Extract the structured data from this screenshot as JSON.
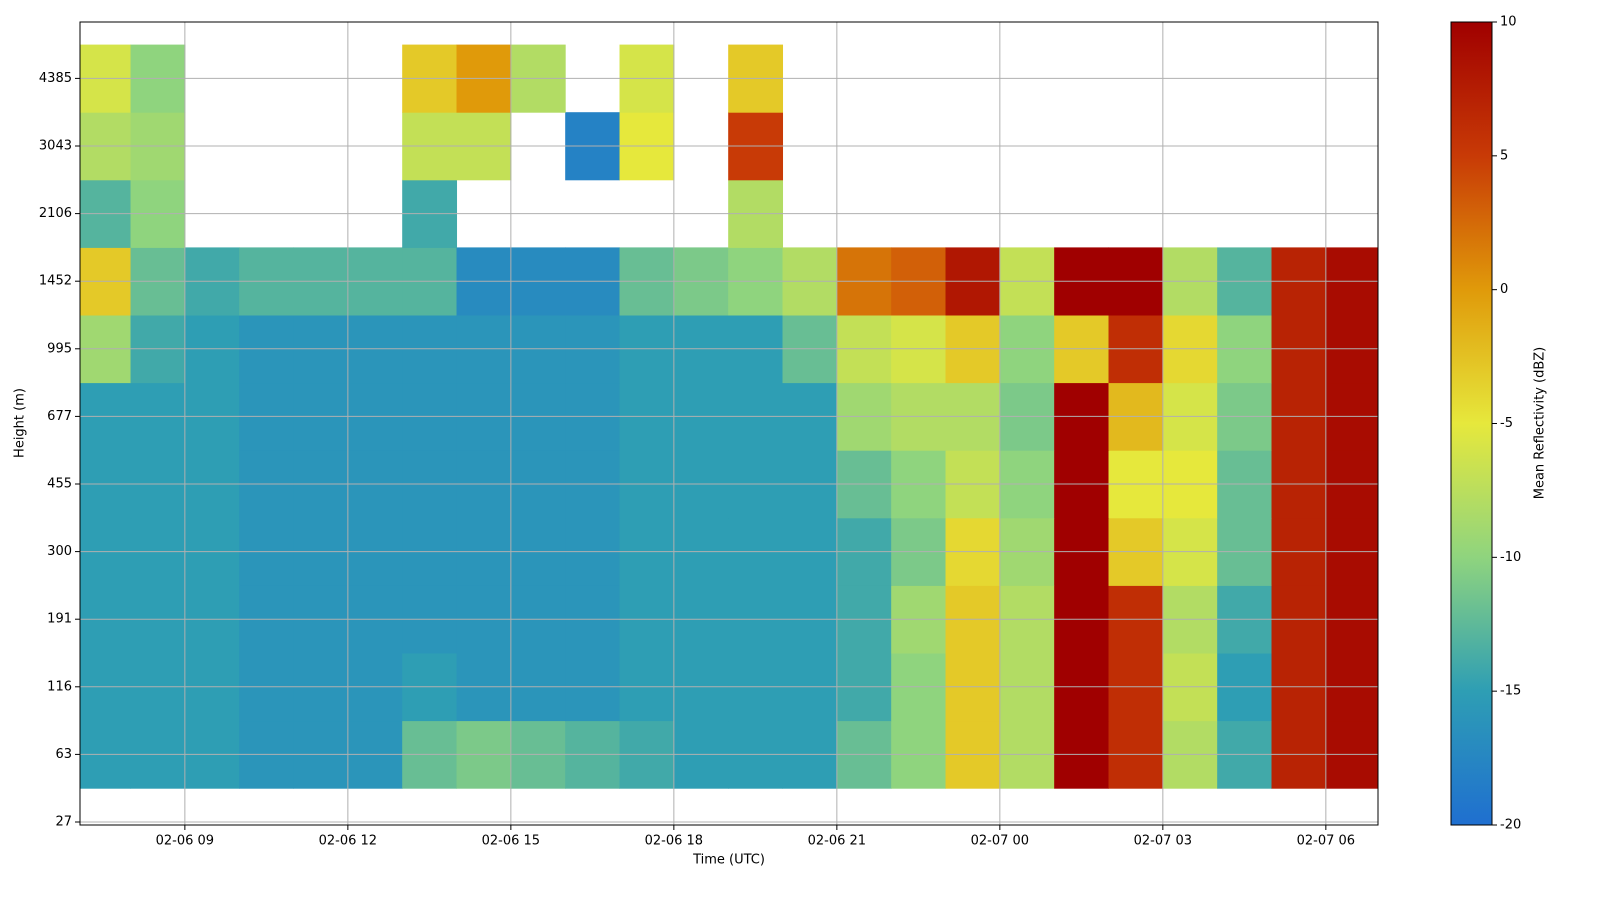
{
  "chart_data": {
    "type": "heatmap",
    "xlabel": "Time (UTC)",
    "ylabel": "Height (m)",
    "colorbar_label": "Mean Reflectivity (dBZ)",
    "xlim": [
      7.07,
      30.96
    ],
    "xticks": [
      {
        "value": 9,
        "label": "02-06 09"
      },
      {
        "value": 12,
        "label": "02-06 12"
      },
      {
        "value": 15,
        "label": "02-06 15"
      },
      {
        "value": 18,
        "label": "02-06 18"
      },
      {
        "value": 21,
        "label": "02-06 21"
      },
      {
        "value": 24,
        "label": "02-07 00"
      },
      {
        "value": 27,
        "label": "02-07 03"
      },
      {
        "value": 30,
        "label": "02-07 06"
      }
    ],
    "x": [
      7.5,
      8.5,
      9.5,
      10.5,
      11.5,
      12.5,
      13.5,
      14.5,
      15.5,
      16.5,
      17.5,
      18.5,
      19.5,
      20.5,
      21.5,
      22.5,
      23.5,
      24.5,
      25.5,
      26.5,
      27.5,
      28.5,
      29.5,
      30.5
    ],
    "y_categories": [
      "27",
      "63",
      "116",
      "191",
      "300",
      "455",
      "677",
      "995",
      "1452",
      "2106",
      "3043",
      "4385"
    ],
    "values": [
      [
        null,
        null,
        null,
        null,
        null,
        null,
        null,
        null,
        null,
        null,
        null,
        null,
        null,
        null,
        null,
        null,
        null,
        null,
        null,
        null,
        null,
        null,
        null,
        null
      ],
      [
        -15,
        -15,
        -15,
        -16,
        -16,
        -16,
        -12,
        -11,
        -12,
        -13,
        -14,
        -15,
        -15,
        -15,
        -12,
        -10,
        -3,
        -8,
        10,
        6,
        -8,
        -14,
        7,
        9
      ],
      [
        -15,
        -15,
        -15,
        -16,
        -16,
        -16,
        -15,
        -16,
        -16,
        -16,
        -15,
        -15,
        -15,
        -15,
        -14,
        -10,
        -3,
        -8,
        10,
        6,
        -7,
        -15,
        7,
        9
      ],
      [
        -15,
        -15,
        -15,
        -16,
        -16,
        -16,
        -16,
        -16,
        -16,
        -16,
        -15,
        -15,
        -15,
        -15,
        -14,
        -9,
        -3,
        -8,
        10,
        6,
        -8,
        -14,
        7,
        9
      ],
      [
        -15,
        -15,
        -15,
        -16,
        -16,
        -16,
        -16,
        -16,
        -16,
        -16,
        -15,
        -15,
        -15,
        -15,
        -14,
        -11,
        -4,
        -9,
        10,
        -3,
        -6,
        -12,
        7,
        9
      ],
      [
        -15,
        -15,
        -15,
        -16,
        -16,
        -16,
        -16,
        -16,
        -16,
        -16,
        -15,
        -15,
        -15,
        -15,
        -12,
        -10,
        -7,
        -10,
        10,
        -5,
        -5,
        -12,
        7,
        9
      ],
      [
        -15,
        -15,
        -15,
        -16,
        -16,
        -16,
        -16,
        -16,
        -16,
        -16,
        -15,
        -15,
        -15,
        -15,
        -9,
        -8,
        -8,
        -11,
        10,
        -2,
        -6,
        -11,
        7,
        9
      ],
      [
        -9,
        -14,
        -15,
        -16,
        -16,
        -16,
        -16,
        -16,
        -16,
        -16,
        -15,
        -15,
        -15,
        -12,
        -7,
        -6,
        -3,
        -10,
        -3,
        6,
        -4,
        -10,
        7,
        9
      ],
      [
        -3,
        -12,
        -14,
        -13,
        -13,
        -13,
        -13,
        -17,
        -17,
        -17,
        -12,
        -11,
        -10,
        -8,
        2,
        3,
        8,
        -7,
        10,
        10,
        -8,
        -13,
        7,
        9
      ],
      [
        -13,
        -10,
        null,
        null,
        null,
        null,
        -14,
        null,
        null,
        null,
        null,
        null,
        -8,
        null,
        null,
        null,
        null,
        null,
        null,
        null,
        null,
        null,
        null,
        null
      ],
      [
        -8,
        -9,
        null,
        null,
        null,
        null,
        -7,
        -7,
        null,
        -18,
        -5,
        null,
        5,
        null,
        null,
        null,
        null,
        null,
        null,
        null,
        null,
        null,
        null,
        null
      ],
      [
        -6,
        -10,
        null,
        null,
        null,
        null,
        -3,
        0,
        -8,
        null,
        -6,
        null,
        -3,
        null,
        null,
        null,
        null,
        null,
        null,
        null,
        null,
        null,
        null,
        null
      ]
    ],
    "clim": [
      -20,
      10
    ],
    "colorscale": [
      "#1f6fd0",
      "#2e9eb4",
      "#8fd47e",
      "#e6e83c",
      "#e09a0a",
      "#c83a06",
      "#a00000"
    ],
    "cticks": [
      -20,
      -15,
      -10,
      -5,
      0,
      5,
      10
    ],
    "grid": true
  }
}
